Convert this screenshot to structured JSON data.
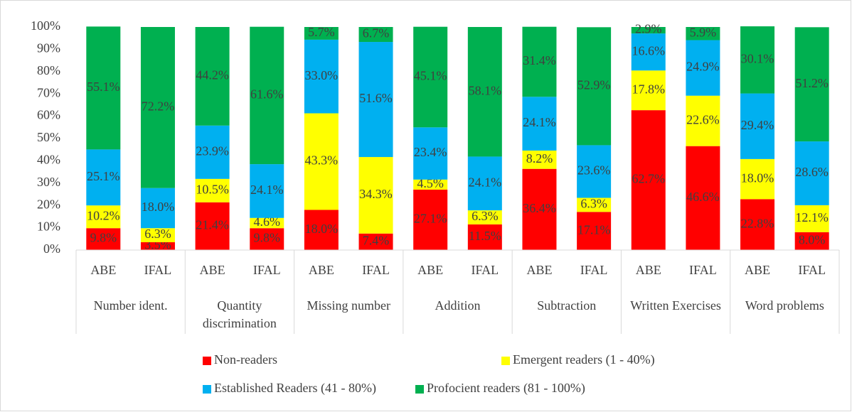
{
  "chart_data": {
    "type": "stacked_bar",
    "categories": [
      "ABE",
      "IFAL",
      "ABE",
      "IFAL",
      "ABE",
      "IFAL",
      "ABE",
      "IFAL",
      "ABE",
      "IFAL",
      "ABE",
      "IFAL",
      "ABE",
      "IFAL"
    ],
    "groups": [
      "Number ident.",
      "Quantity discrimination",
      "Missing number",
      "Addition",
      "Subtraction",
      "Written Exercises",
      "Word problems"
    ],
    "series": [
      {
        "name": "Non-readers",
        "color": "#ff0000",
        "values": [
          9.8,
          3.5,
          21.4,
          9.8,
          18.0,
          7.4,
          27.1,
          11.5,
          36.4,
          17.1,
          62.7,
          46.6,
          22.8,
          8.0
        ],
        "value_labels": [
          "9.8%",
          "3.5%",
          "21.4%",
          "9.8%",
          "18.0%",
          "7.4%",
          "27.1%",
          "11.5%",
          "36.4%",
          "17.1%",
          "62.7%",
          "46.6%",
          "22.8%",
          "8.0%"
        ]
      },
      {
        "name": "Emergent readers (1 - 40%)",
        "color": "#ffff00",
        "values": [
          10.2,
          6.3,
          10.5,
          4.6,
          43.3,
          34.3,
          4.5,
          6.3,
          8.2,
          6.3,
          17.8,
          22.6,
          18.0,
          12.1
        ],
        "value_labels": [
          "10.2%",
          "6.3%",
          "10.5%",
          "4.6%",
          "43.3%",
          "34.3%",
          "4.5%",
          "6.3%",
          "8.2%",
          "6.3%",
          "17.8%",
          "22.6%",
          "18.0%",
          "12.1%"
        ]
      },
      {
        "name": "Established Readers (41 - 80%)",
        "color": "#00b0f0",
        "values": [
          25.1,
          18.0,
          23.9,
          24.1,
          33.0,
          51.6,
          23.4,
          24.1,
          24.1,
          23.6,
          16.6,
          24.9,
          29.4,
          28.6
        ],
        "value_labels": [
          "25.1%",
          "18.0%",
          "23.9%",
          "24.1%",
          "33.0%",
          "51.6%",
          "23.4%",
          "24.1%",
          "24.1%",
          "23.6%",
          "16.6%",
          "24.9%",
          "29.4%",
          "28.6%"
        ]
      },
      {
        "name": "Profocient readers (81 - 100%)",
        "color": "#00b050",
        "values": [
          55.1,
          72.2,
          44.2,
          61.6,
          5.7,
          6.7,
          45.1,
          58.1,
          31.4,
          52.9,
          2.9,
          5.9,
          30.1,
          51.2
        ],
        "value_labels": [
          "55.1%",
          "72.2%",
          "44.2%",
          "61.6%",
          "5.7%",
          "6.7%",
          "45.1%",
          "58.1%",
          "31.4%",
          "52.9%",
          "2.9%",
          "5.9%",
          "30.1%",
          "51.2%"
        ]
      }
    ],
    "ylim": [
      0,
      100
    ],
    "yticks": [
      {
        "value": 0,
        "label": "0%"
      },
      {
        "value": 10,
        "label": "10%"
      },
      {
        "value": 20,
        "label": "20%"
      },
      {
        "value": 30,
        "label": "30%"
      },
      {
        "value": 40,
        "label": "40%"
      },
      {
        "value": 50,
        "label": "50%"
      },
      {
        "value": 60,
        "label": "60%"
      },
      {
        "value": 70,
        "label": "70%"
      },
      {
        "value": 80,
        "label": "80%"
      },
      {
        "value": 90,
        "label": "90%"
      },
      {
        "value": 100,
        "label": "100%"
      }
    ],
    "legend": "bottom"
  }
}
